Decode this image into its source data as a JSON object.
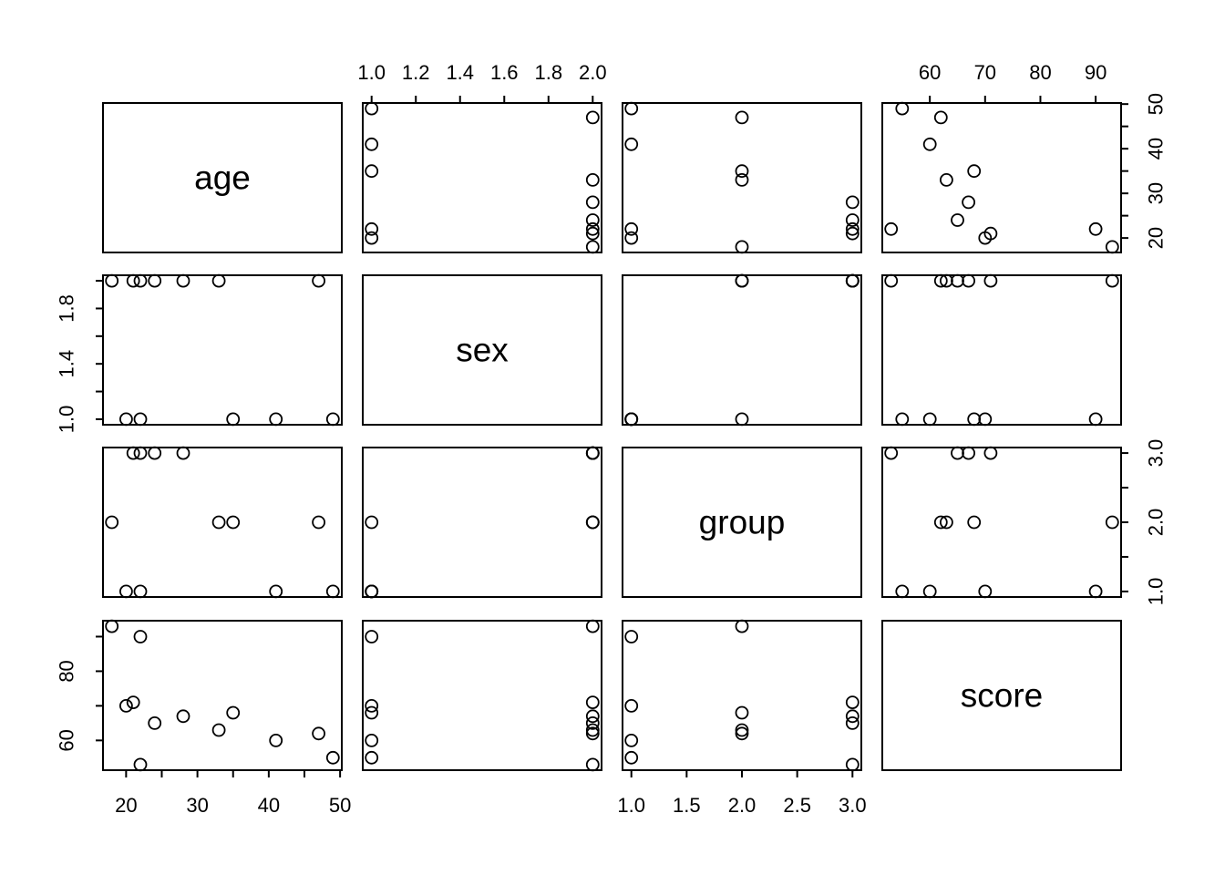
{
  "figure": {
    "background": "#ffffff",
    "stroke_color": "#000000",
    "point_style": "open-circle"
  },
  "chart_data": {
    "type": "scatter-matrix",
    "title": "",
    "legend": "none",
    "grid": false,
    "variables": [
      {
        "name": "age",
        "label": "age",
        "range": [
          16.76,
          50.24
        ]
      },
      {
        "name": "sex",
        "label": "sex",
        "range": [
          0.96,
          2.04
        ]
      },
      {
        "name": "group",
        "label": "group",
        "range": [
          0.92,
          3.08
        ]
      },
      {
        "name": "score",
        "label": "score",
        "range": [
          51.4,
          94.6
        ]
      }
    ],
    "observations": [
      {
        "age": 18,
        "sex": 2,
        "group": 2,
        "score": 93
      },
      {
        "age": 20,
        "sex": 1,
        "group": 1,
        "score": 70
      },
      {
        "age": 21,
        "sex": 2,
        "group": 3,
        "score": 71
      },
      {
        "age": 22,
        "sex": 1,
        "group": 1,
        "score": 90
      },
      {
        "age": 22,
        "sex": 2,
        "group": 3,
        "score": 53
      },
      {
        "age": 24,
        "sex": 2,
        "group": 3,
        "score": 65
      },
      {
        "age": 28,
        "sex": 2,
        "group": 3,
        "score": 67
      },
      {
        "age": 33,
        "sex": 2,
        "group": 2,
        "score": 63
      },
      {
        "age": 35,
        "sex": 1,
        "group": 2,
        "score": 68
      },
      {
        "age": 41,
        "sex": 1,
        "group": 1,
        "score": 60
      },
      {
        "age": 47,
        "sex": 2,
        "group": 2,
        "score": 62
      },
      {
        "age": 49,
        "sex": 1,
        "group": 1,
        "score": 55
      }
    ],
    "axes": [
      {
        "side": "top",
        "row": 0,
        "col": 1,
        "var": "sex",
        "ticks": [
          {
            "v": 1.0,
            "t": "1.0"
          },
          {
            "v": 1.2,
            "t": "1.2"
          },
          {
            "v": 1.4,
            "t": "1.4"
          },
          {
            "v": 1.6,
            "t": "1.6"
          },
          {
            "v": 1.8,
            "t": "1.8"
          },
          {
            "v": 2.0,
            "t": "2.0"
          }
        ]
      },
      {
        "side": "top",
        "row": 0,
        "col": 3,
        "var": "score",
        "ticks": [
          {
            "v": 60,
            "t": "60"
          },
          {
            "v": 70,
            "t": "70"
          },
          {
            "v": 80,
            "t": "80"
          },
          {
            "v": 90,
            "t": "90"
          }
        ]
      },
      {
        "side": "right",
        "row": 0,
        "col": 3,
        "var": "age",
        "ticks": [
          {
            "v": 20,
            "t": "20"
          },
          {
            "v": 25,
            "t": ""
          },
          {
            "v": 30,
            "t": "30"
          },
          {
            "v": 35,
            "t": ""
          },
          {
            "v": 40,
            "t": "40"
          },
          {
            "v": 45,
            "t": ""
          },
          {
            "v": 50,
            "t": "50"
          }
        ]
      },
      {
        "side": "left",
        "row": 1,
        "col": 0,
        "var": "sex",
        "ticks": [
          {
            "v": 1.0,
            "t": "1.0"
          },
          {
            "v": 1.2,
            "t": ""
          },
          {
            "v": 1.4,
            "t": "1.4"
          },
          {
            "v": 1.6,
            "t": ""
          },
          {
            "v": 1.8,
            "t": "1.8"
          },
          {
            "v": 2.0,
            "t": ""
          }
        ]
      },
      {
        "side": "right",
        "row": 2,
        "col": 3,
        "var": "group",
        "ticks": [
          {
            "v": 1.0,
            "t": "1.0"
          },
          {
            "v": 1.5,
            "t": ""
          },
          {
            "v": 2.0,
            "t": "2.0"
          },
          {
            "v": 2.5,
            "t": ""
          },
          {
            "v": 3.0,
            "t": "3.0"
          }
        ]
      },
      {
        "side": "left",
        "row": 3,
        "col": 0,
        "var": "score",
        "ticks": [
          {
            "v": 60,
            "t": "60"
          },
          {
            "v": 70,
            "t": ""
          },
          {
            "v": 80,
            "t": "80"
          },
          {
            "v": 90,
            "t": ""
          }
        ]
      },
      {
        "side": "bottom",
        "row": 3,
        "col": 0,
        "var": "age",
        "ticks": [
          {
            "v": 20,
            "t": "20"
          },
          {
            "v": 25,
            "t": ""
          },
          {
            "v": 30,
            "t": "30"
          },
          {
            "v": 35,
            "t": ""
          },
          {
            "v": 40,
            "t": "40"
          },
          {
            "v": 45,
            "t": ""
          },
          {
            "v": 50,
            "t": "50"
          }
        ]
      },
      {
        "side": "bottom",
        "row": 3,
        "col": 2,
        "var": "group",
        "ticks": [
          {
            "v": 1.0,
            "t": "1.0"
          },
          {
            "v": 1.5,
            "t": "1.5"
          },
          {
            "v": 2.0,
            "t": "2.0"
          },
          {
            "v": 2.5,
            "t": "2.5"
          },
          {
            "v": 3.0,
            "t": "3.0"
          }
        ]
      }
    ]
  }
}
